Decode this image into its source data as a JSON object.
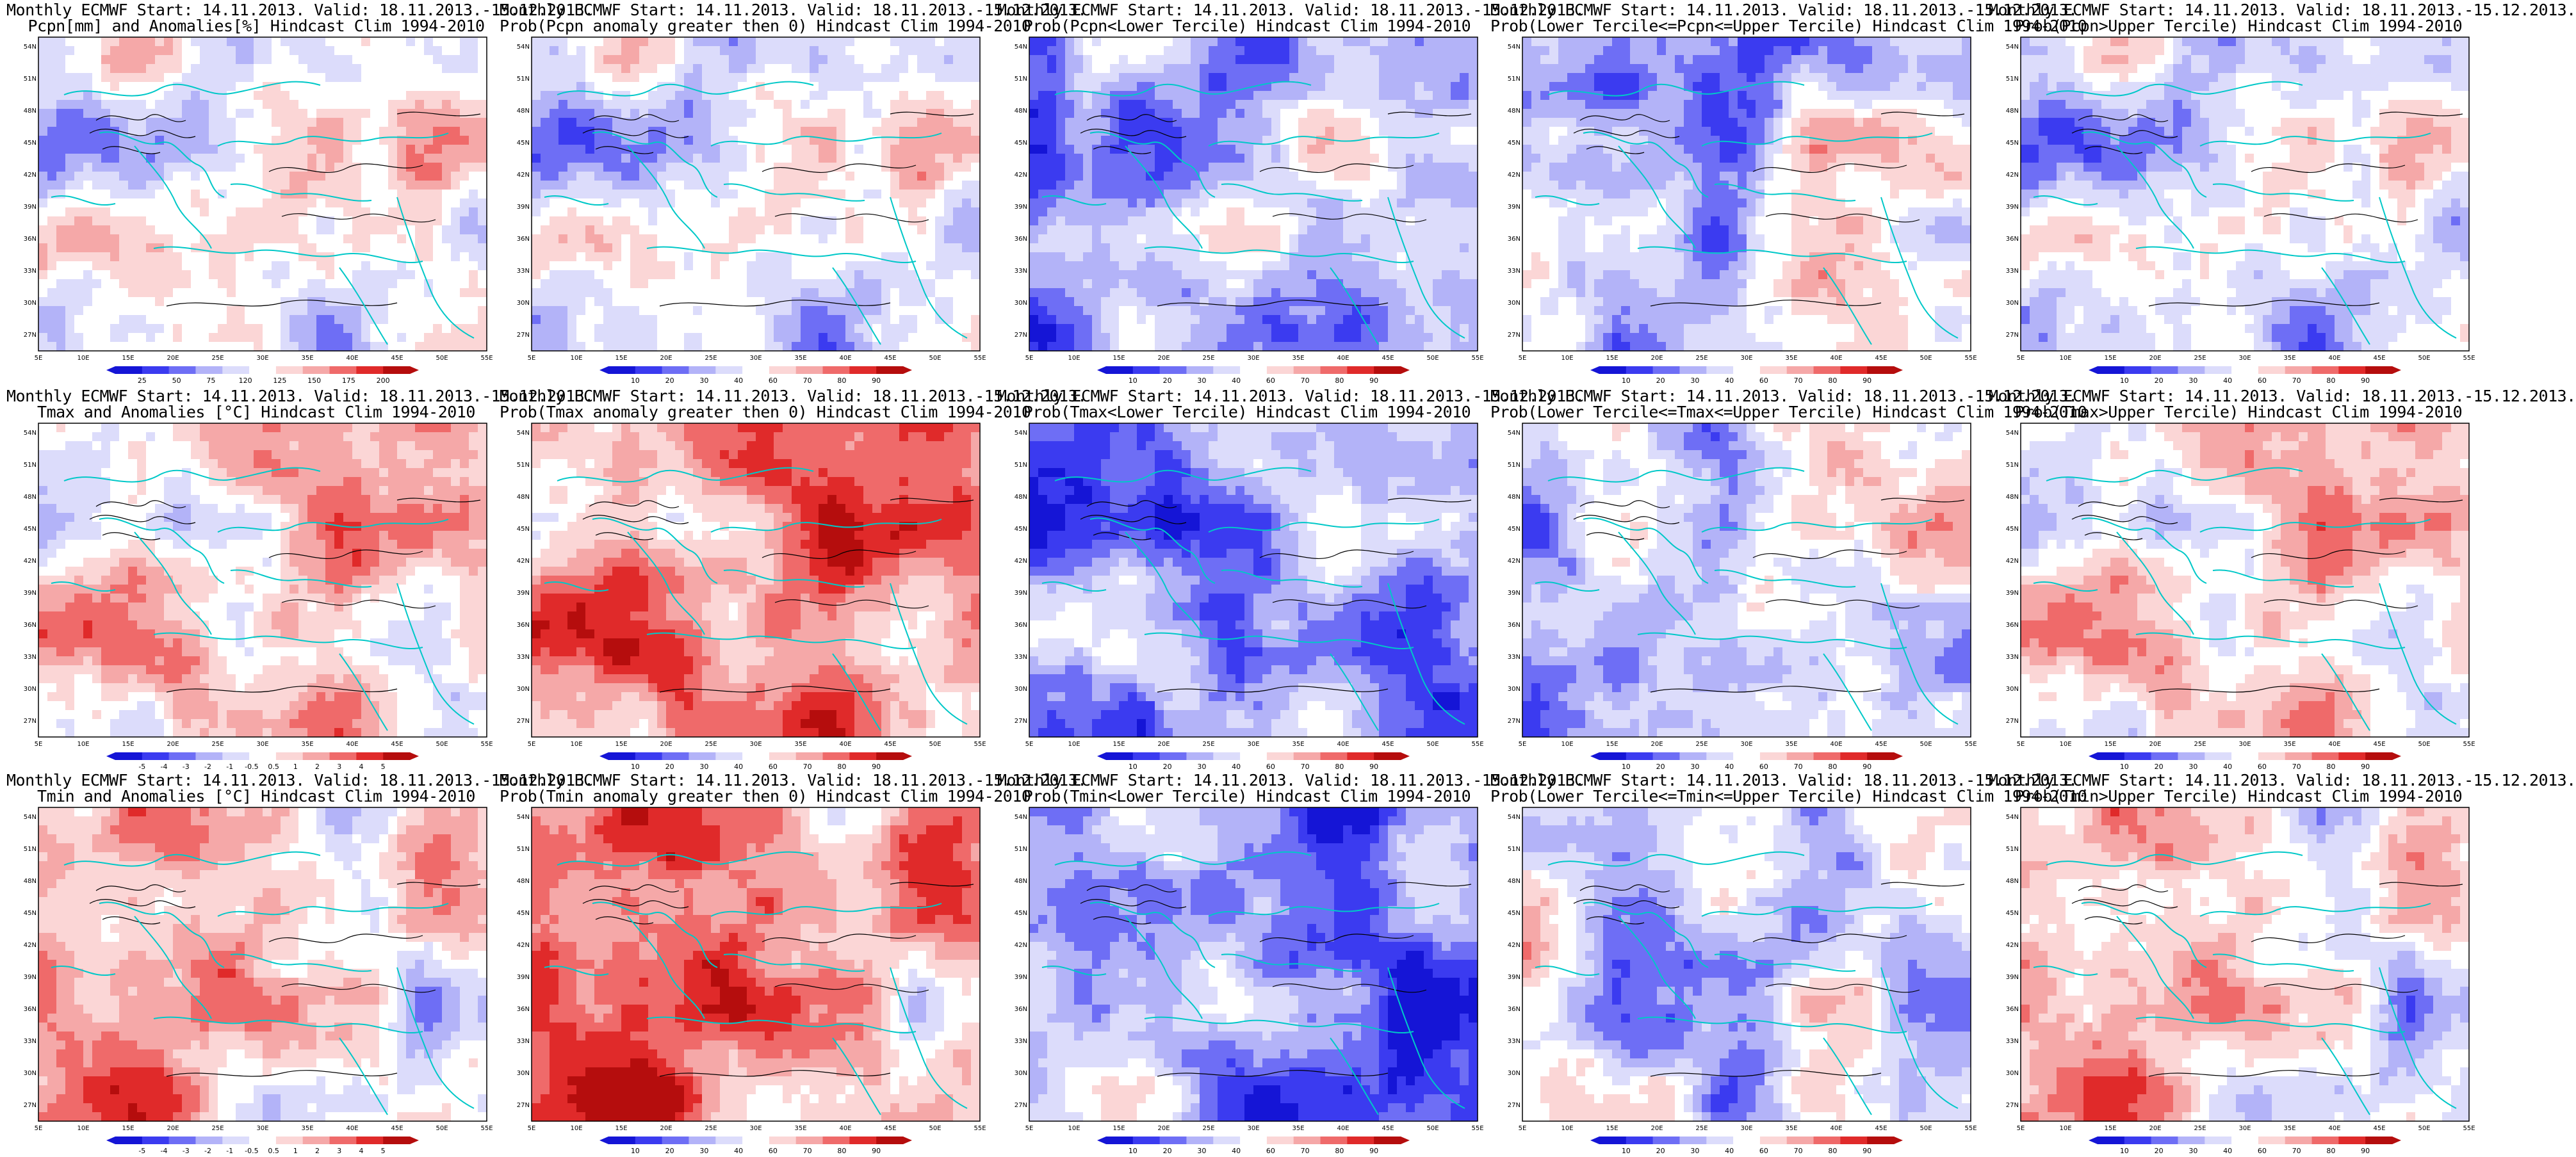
{
  "colors": {
    "deep_blue": "#1515d6",
    "blue": "#3b3bf0",
    "mid_blue": "#6e6ef5",
    "light_blue": "#b3b3f8",
    "pale_blue": "#dcdcfb",
    "white": "#ffffff",
    "pale_red": "#fbd6d6",
    "light_red": "#f5a8a8",
    "mid_red": "#ef6a6a",
    "red": "#e02a2a",
    "dark_red": "#b50d0d",
    "coast": "#00c8c8",
    "contour": "#000000"
  },
  "axis": {
    "lon_labels": [
      "5E",
      "10E",
      "15E",
      "20E",
      "25E",
      "30E",
      "35E",
      "40E",
      "45E",
      "50E",
      "55E"
    ],
    "lat_labels": [
      "54N",
      "51N",
      "48N",
      "45N",
      "42N",
      "39N",
      "36N",
      "33N",
      "30N",
      "27N"
    ]
  },
  "palettes": {
    "anom": [
      "#1515d6",
      "#3b3bf0",
      "#6e6ef5",
      "#b3b3f8",
      "#dcdcfb",
      "#ffffff",
      "#fbd6d6",
      "#f5a8a8",
      "#ef6a6a",
      "#e02a2a",
      "#b50d0d"
    ],
    "prob": [
      "#1515d6",
      "#3b3bf0",
      "#6e6ef5",
      "#b3b3f8",
      "#dcdcfb",
      "#ffffff",
      "#fbd6d6",
      "#f5a8a8",
      "#ef6a6a",
      "#e02a2a",
      "#b50d0d"
    ]
  },
  "panels": [
    {
      "row": 0,
      "col": 0,
      "title1": "Monthly ECMWF Start: 14.11.2013. Valid: 18.11.2013.-15.12.2013.",
      "title2": "Pcpn[mm] and Anomalies[%] Hindcast Clim 1994-2010",
      "palette": "anom",
      "colorbar": [
        "25",
        "50",
        "75",
        "120",
        "125",
        "150",
        "175",
        "200"
      ],
      "seed": 11,
      "bias": 0.0
    },
    {
      "row": 0,
      "col": 1,
      "title1": "Monthly ECMWF Start: 14.11.2013. Valid: 18.11.2013.-15.12.2013.",
      "title2": "Prob(Pcpn anomaly greater then 0) Hindcast Clim 1994-2010",
      "palette": "prob",
      "colorbar": [
        "10",
        "20",
        "30",
        "40",
        "60",
        "70",
        "80",
        "90"
      ],
      "seed": 11,
      "bias": -0.1
    },
    {
      "row": 0,
      "col": 2,
      "title1": "Monthly ECMWF Start: 14.11.2013. Valid: 18.11.2013.-15.12.2013.",
      "title2": "Prob(Pcpn<Lower Tercile) Hindcast Clim 1994-2010",
      "palette": "prob",
      "colorbar": [
        "10",
        "20",
        "30",
        "40",
        "60",
        "70",
        "80",
        "90"
      ],
      "seed": 23,
      "bias": -0.25
    },
    {
      "row": 0,
      "col": 3,
      "title1": "Monthly ECMWF Start: 14.11.2013. Valid: 18.11.2013.-15.12.2013.",
      "title2": "Prob(Lower Tercile<=Pcpn<=Upper Tercile) Hindcast Clim 1994-2010",
      "palette": "prob",
      "colorbar": [
        "10",
        "20",
        "30",
        "40",
        "60",
        "70",
        "80",
        "90"
      ],
      "seed": 37,
      "bias": -0.3
    },
    {
      "row": 0,
      "col": 4,
      "title1": "Monthly ECMWF Start: 14.11.2013. Valid: 18.11.2013.-15.12.2013.",
      "title2": "Prob(Pcpn>Upper Tercile) Hindcast Clim 1994-2010",
      "palette": "prob",
      "colorbar": [
        "10",
        "20",
        "30",
        "40",
        "60",
        "70",
        "80",
        "90"
      ],
      "seed": 11,
      "bias": -0.15
    },
    {
      "row": 1,
      "col": 0,
      "title1": "Monthly ECMWF Start: 14.11.2013. Valid: 18.11.2013.-15.12.2013.",
      "title2": "Tmax and Anomalies [°C] Hindcast Clim 1994-2010",
      "palette": "anom",
      "colorbar": [
        "-5",
        "-4",
        "-3",
        "-2",
        "-1",
        "-0.5",
        "0.5",
        "1",
        "2",
        "3",
        "4",
        "5"
      ],
      "seed": 51,
      "bias": 0.15
    },
    {
      "row": 1,
      "col": 1,
      "title1": "Monthly ECMWF Start: 14.11.2013. Valid: 18.11.2013.-15.12.2013.",
      "title2": "Prob(Tmax anomaly greater then 0) Hindcast Clim 1994-2010",
      "palette": "prob",
      "colorbar": [
        "10",
        "20",
        "30",
        "40",
        "60",
        "70",
        "80",
        "90"
      ],
      "seed": 51,
      "bias": 0.45
    },
    {
      "row": 1,
      "col": 2,
      "title1": "Monthly ECMWF Start: 14.11.2013. Valid: 18.11.2013.-15.12.2013.",
      "title2": "Prob(Tmax<Lower Tercile) Hindcast Clim 1994-2010",
      "palette": "prob",
      "colorbar": [
        "10",
        "20",
        "30",
        "40",
        "60",
        "70",
        "80",
        "90"
      ],
      "seed": 51,
      "bias": -0.6
    },
    {
      "row": 1,
      "col": 3,
      "title1": "Monthly ECMWF Start: 14.11.2013. Valid: 18.11.2013.-15.12.2013.",
      "title2": "Prob(Lower Tercile<=Tmax<=Upper Tercile) Hindcast Clim 1994-2010",
      "palette": "prob",
      "colorbar": [
        "10",
        "20",
        "30",
        "40",
        "60",
        "70",
        "80",
        "90"
      ],
      "seed": 63,
      "bias": -0.25
    },
    {
      "row": 1,
      "col": 4,
      "title1": "Monthly ECMWF Start: 14.11.2013. Valid: 18.11.2013.-15.12.2013.",
      "title2": "Prob(Tmax>Upper Tercile) Hindcast Clim 1994-2010",
      "palette": "prob",
      "colorbar": [
        "10",
        "20",
        "30",
        "40",
        "60",
        "70",
        "80",
        "90"
      ],
      "seed": 51,
      "bias": 0.1
    },
    {
      "row": 2,
      "col": 0,
      "title1": "Monthly ECMWF Start: 14.11.2013. Valid: 18.11.2013.-15.12.2013.",
      "title2": "Tmin and Anomalies [°C] Hindcast Clim 1994-2010",
      "palette": "anom",
      "colorbar": [
        "-5",
        "-4",
        "-3",
        "-2",
        "-1",
        "-0.5",
        "0.5",
        "1",
        "2",
        "3",
        "4",
        "5"
      ],
      "seed": 77,
      "bias": 0.2
    },
    {
      "row": 2,
      "col": 1,
      "title1": "Monthly ECMWF Start: 14.11.2013. Valid: 18.11.2013.-15.12.2013.",
      "title2": "Prob(Tmin anomaly greater then 0) Hindcast Clim 1994-2010",
      "palette": "prob",
      "colorbar": [
        "10",
        "20",
        "30",
        "40",
        "60",
        "70",
        "80",
        "90"
      ],
      "seed": 77,
      "bias": 0.5
    },
    {
      "row": 2,
      "col": 2,
      "title1": "Monthly ECMWF Start: 14.11.2013. Valid: 18.11.2013.-15.12.2013.",
      "title2": "Prob(Tmin<Lower Tercile) Hindcast Clim 1994-2010",
      "palette": "prob",
      "colorbar": [
        "10",
        "20",
        "30",
        "40",
        "60",
        "70",
        "80",
        "90"
      ],
      "seed": 77,
      "bias": -0.6
    },
    {
      "row": 2,
      "col": 3,
      "title1": "Monthly ECMWF Start: 14.11.2013. Valid: 18.11.2013.-15.12.2013.",
      "title2": "Prob(Lower Tercile<=Tmin<=Upper Tercile) Hindcast Clim 1994-2010",
      "palette": "prob",
      "colorbar": [
        "10",
        "20",
        "30",
        "40",
        "60",
        "70",
        "80",
        "90"
      ],
      "seed": 89,
      "bias": -0.3
    },
    {
      "row": 2,
      "col": 4,
      "title1": "Monthly ECMWF Start: 14.11.2013. Valid: 18.11.2013.-15.12.2013.",
      "title2": "Prob(Tmin>Upper Tercile) Hindcast Clim 1994-2010",
      "palette": "prob",
      "colorbar": [
        "10",
        "20",
        "30",
        "40",
        "60",
        "70",
        "80",
        "90"
      ],
      "seed": 77,
      "bias": 0.1
    }
  ]
}
